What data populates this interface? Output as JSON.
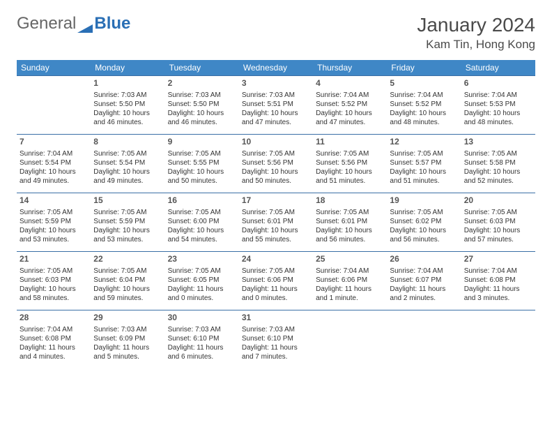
{
  "brand": {
    "general": "General",
    "blue": "Blue"
  },
  "title": "January 2024",
  "location": "Kam Tin, Hong Kong",
  "colors": {
    "header_bg": "#3f87c6",
    "header_text": "#ffffff",
    "cell_border": "#3a6fa6",
    "text": "#333333"
  },
  "weekdays": [
    "Sunday",
    "Monday",
    "Tuesday",
    "Wednesday",
    "Thursday",
    "Friday",
    "Saturday"
  ],
  "weeks": [
    [
      null,
      {
        "n": "1",
        "sr": "Sunrise: 7:03 AM",
        "ss": "Sunset: 5:50 PM",
        "dl": "Daylight: 10 hours and 46 minutes."
      },
      {
        "n": "2",
        "sr": "Sunrise: 7:03 AM",
        "ss": "Sunset: 5:50 PM",
        "dl": "Daylight: 10 hours and 46 minutes."
      },
      {
        "n": "3",
        "sr": "Sunrise: 7:03 AM",
        "ss": "Sunset: 5:51 PM",
        "dl": "Daylight: 10 hours and 47 minutes."
      },
      {
        "n": "4",
        "sr": "Sunrise: 7:04 AM",
        "ss": "Sunset: 5:52 PM",
        "dl": "Daylight: 10 hours and 47 minutes."
      },
      {
        "n": "5",
        "sr": "Sunrise: 7:04 AM",
        "ss": "Sunset: 5:52 PM",
        "dl": "Daylight: 10 hours and 48 minutes."
      },
      {
        "n": "6",
        "sr": "Sunrise: 7:04 AM",
        "ss": "Sunset: 5:53 PM",
        "dl": "Daylight: 10 hours and 48 minutes."
      }
    ],
    [
      {
        "n": "7",
        "sr": "Sunrise: 7:04 AM",
        "ss": "Sunset: 5:54 PM",
        "dl": "Daylight: 10 hours and 49 minutes."
      },
      {
        "n": "8",
        "sr": "Sunrise: 7:05 AM",
        "ss": "Sunset: 5:54 PM",
        "dl": "Daylight: 10 hours and 49 minutes."
      },
      {
        "n": "9",
        "sr": "Sunrise: 7:05 AM",
        "ss": "Sunset: 5:55 PM",
        "dl": "Daylight: 10 hours and 50 minutes."
      },
      {
        "n": "10",
        "sr": "Sunrise: 7:05 AM",
        "ss": "Sunset: 5:56 PM",
        "dl": "Daylight: 10 hours and 50 minutes."
      },
      {
        "n": "11",
        "sr": "Sunrise: 7:05 AM",
        "ss": "Sunset: 5:56 PM",
        "dl": "Daylight: 10 hours and 51 minutes."
      },
      {
        "n": "12",
        "sr": "Sunrise: 7:05 AM",
        "ss": "Sunset: 5:57 PM",
        "dl": "Daylight: 10 hours and 51 minutes."
      },
      {
        "n": "13",
        "sr": "Sunrise: 7:05 AM",
        "ss": "Sunset: 5:58 PM",
        "dl": "Daylight: 10 hours and 52 minutes."
      }
    ],
    [
      {
        "n": "14",
        "sr": "Sunrise: 7:05 AM",
        "ss": "Sunset: 5:59 PM",
        "dl": "Daylight: 10 hours and 53 minutes."
      },
      {
        "n": "15",
        "sr": "Sunrise: 7:05 AM",
        "ss": "Sunset: 5:59 PM",
        "dl": "Daylight: 10 hours and 53 minutes."
      },
      {
        "n": "16",
        "sr": "Sunrise: 7:05 AM",
        "ss": "Sunset: 6:00 PM",
        "dl": "Daylight: 10 hours and 54 minutes."
      },
      {
        "n": "17",
        "sr": "Sunrise: 7:05 AM",
        "ss": "Sunset: 6:01 PM",
        "dl": "Daylight: 10 hours and 55 minutes."
      },
      {
        "n": "18",
        "sr": "Sunrise: 7:05 AM",
        "ss": "Sunset: 6:01 PM",
        "dl": "Daylight: 10 hours and 56 minutes."
      },
      {
        "n": "19",
        "sr": "Sunrise: 7:05 AM",
        "ss": "Sunset: 6:02 PM",
        "dl": "Daylight: 10 hours and 56 minutes."
      },
      {
        "n": "20",
        "sr": "Sunrise: 7:05 AM",
        "ss": "Sunset: 6:03 PM",
        "dl": "Daylight: 10 hours and 57 minutes."
      }
    ],
    [
      {
        "n": "21",
        "sr": "Sunrise: 7:05 AM",
        "ss": "Sunset: 6:03 PM",
        "dl": "Daylight: 10 hours and 58 minutes."
      },
      {
        "n": "22",
        "sr": "Sunrise: 7:05 AM",
        "ss": "Sunset: 6:04 PM",
        "dl": "Daylight: 10 hours and 59 minutes."
      },
      {
        "n": "23",
        "sr": "Sunrise: 7:05 AM",
        "ss": "Sunset: 6:05 PM",
        "dl": "Daylight: 11 hours and 0 minutes."
      },
      {
        "n": "24",
        "sr": "Sunrise: 7:05 AM",
        "ss": "Sunset: 6:06 PM",
        "dl": "Daylight: 11 hours and 0 minutes."
      },
      {
        "n": "25",
        "sr": "Sunrise: 7:04 AM",
        "ss": "Sunset: 6:06 PM",
        "dl": "Daylight: 11 hours and 1 minute."
      },
      {
        "n": "26",
        "sr": "Sunrise: 7:04 AM",
        "ss": "Sunset: 6:07 PM",
        "dl": "Daylight: 11 hours and 2 minutes."
      },
      {
        "n": "27",
        "sr": "Sunrise: 7:04 AM",
        "ss": "Sunset: 6:08 PM",
        "dl": "Daylight: 11 hours and 3 minutes."
      }
    ],
    [
      {
        "n": "28",
        "sr": "Sunrise: 7:04 AM",
        "ss": "Sunset: 6:08 PM",
        "dl": "Daylight: 11 hours and 4 minutes."
      },
      {
        "n": "29",
        "sr": "Sunrise: 7:03 AM",
        "ss": "Sunset: 6:09 PM",
        "dl": "Daylight: 11 hours and 5 minutes."
      },
      {
        "n": "30",
        "sr": "Sunrise: 7:03 AM",
        "ss": "Sunset: 6:10 PM",
        "dl": "Daylight: 11 hours and 6 minutes."
      },
      {
        "n": "31",
        "sr": "Sunrise: 7:03 AM",
        "ss": "Sunset: 6:10 PM",
        "dl": "Daylight: 11 hours and 7 minutes."
      },
      null,
      null,
      null
    ]
  ]
}
